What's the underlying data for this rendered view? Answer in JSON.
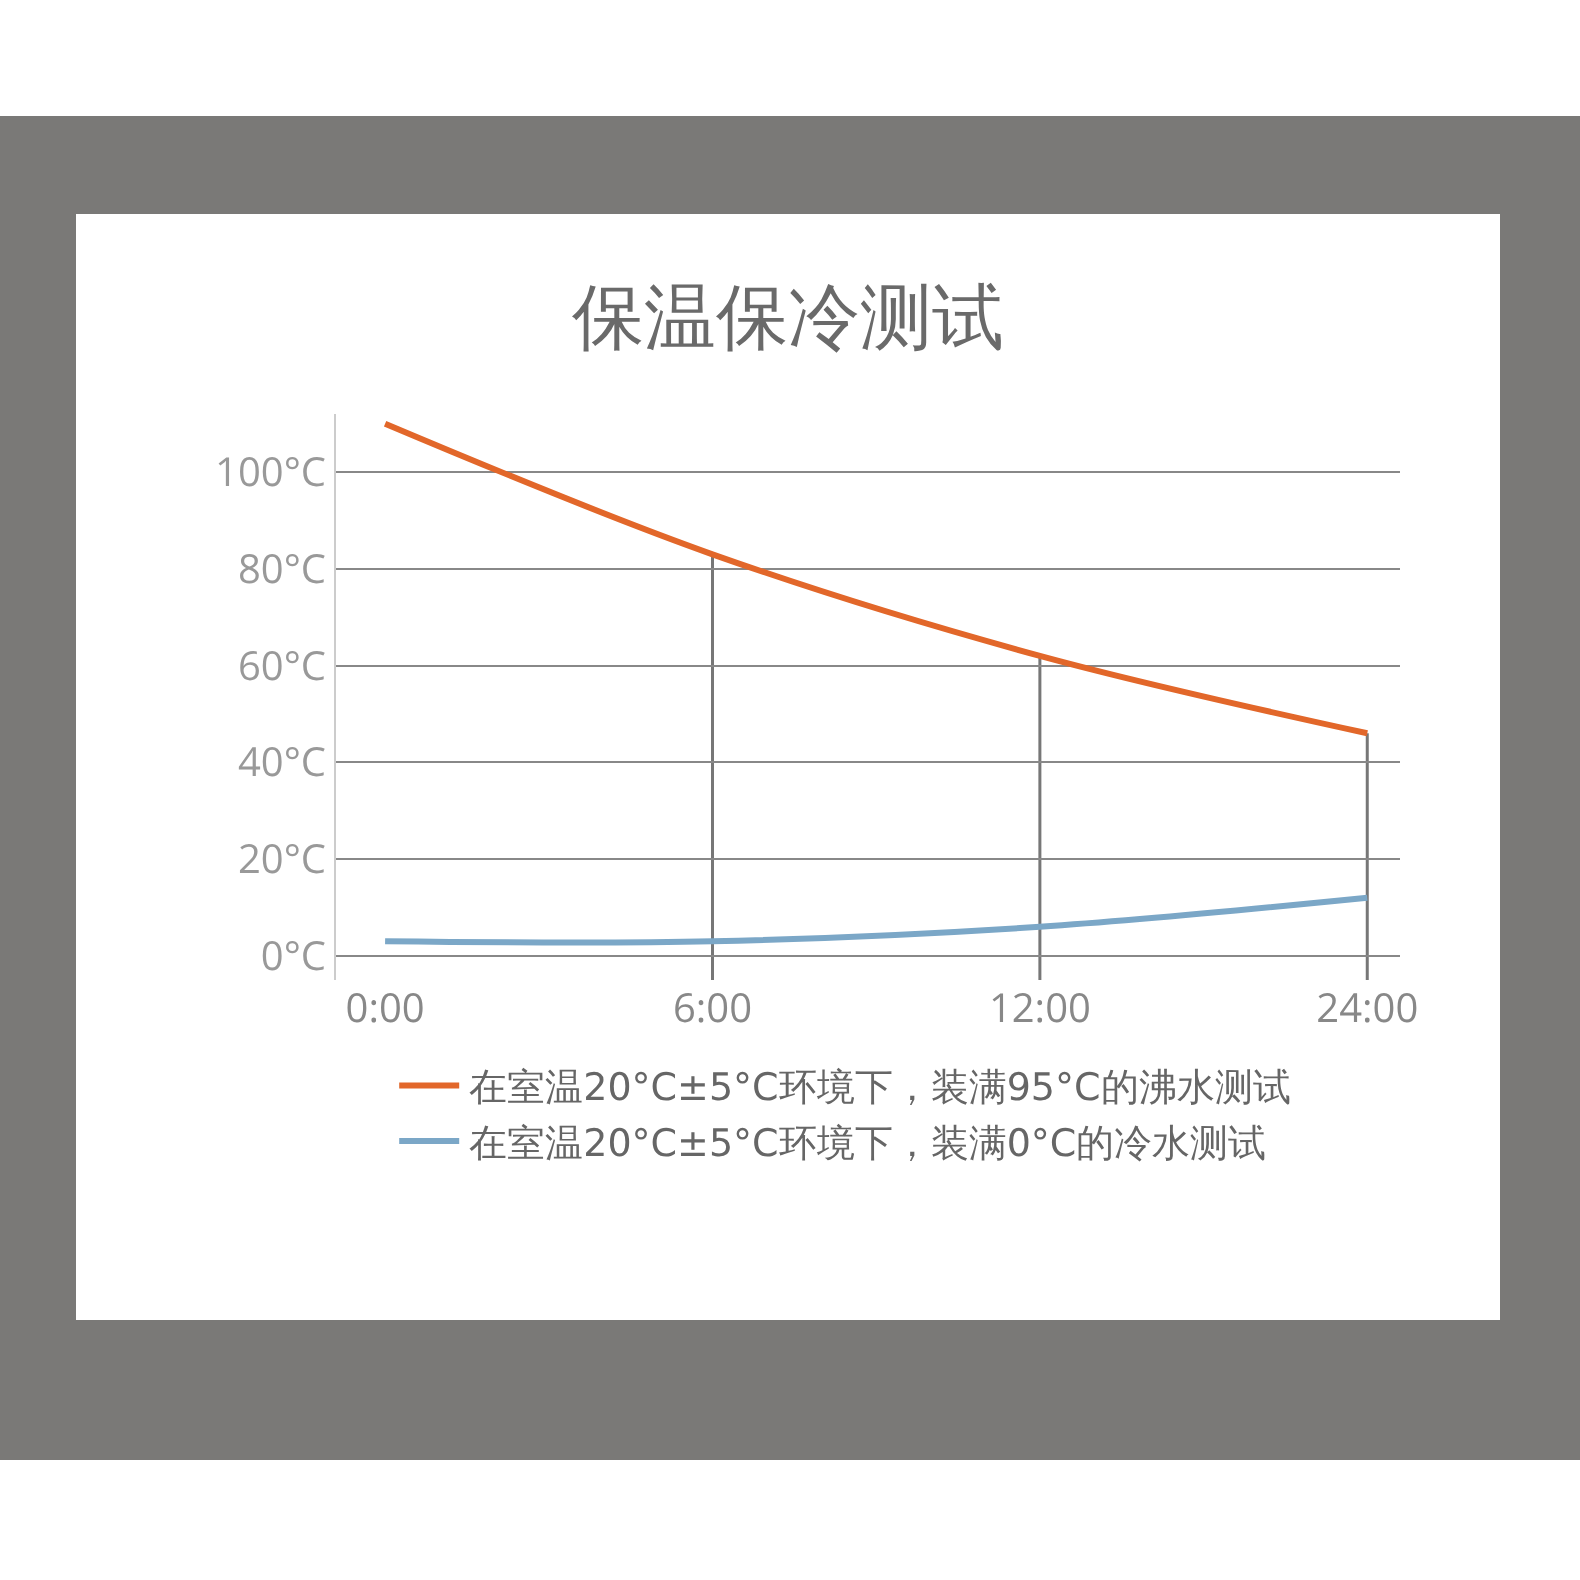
{
  "chart_data": {
    "type": "line",
    "title": "保温保冷测试",
    "categories": [
      "0:00",
      "6:00",
      "12:00",
      "24:00"
    ],
    "series": [
      {
        "name": "在室温20°C±5°C环境下，装满95°C的沸水测试",
        "color": "#e2672a",
        "values": [
          110,
          83,
          62,
          46
        ]
      },
      {
        "name": "在室温20°C±5°C环境下，装满0°C的冷水测试",
        "color": "#7ba7c7",
        "values": [
          3,
          3,
          6,
          12
        ]
      }
    ],
    "ylim": [
      -5,
      112
    ],
    "yticks": [
      {
        "value": 0,
        "label": "0°C"
      },
      {
        "value": 20,
        "label": "20°C"
      },
      {
        "value": 40,
        "label": "40°C"
      },
      {
        "value": 60,
        "label": "60°C"
      },
      {
        "value": 80,
        "label": "80°C"
      },
      {
        "value": 100,
        "label": "100°C"
      }
    ],
    "ref_lines": [
      {
        "axis": "x",
        "value": "6:00",
        "color": "#777777"
      },
      {
        "axis": "x",
        "value": "12:00",
        "color": "#777777"
      },
      {
        "axis": "x",
        "value": "24:00",
        "color": "#777777"
      }
    ],
    "grid": "y",
    "legend": "bottom",
    "line_style": "solid"
  }
}
